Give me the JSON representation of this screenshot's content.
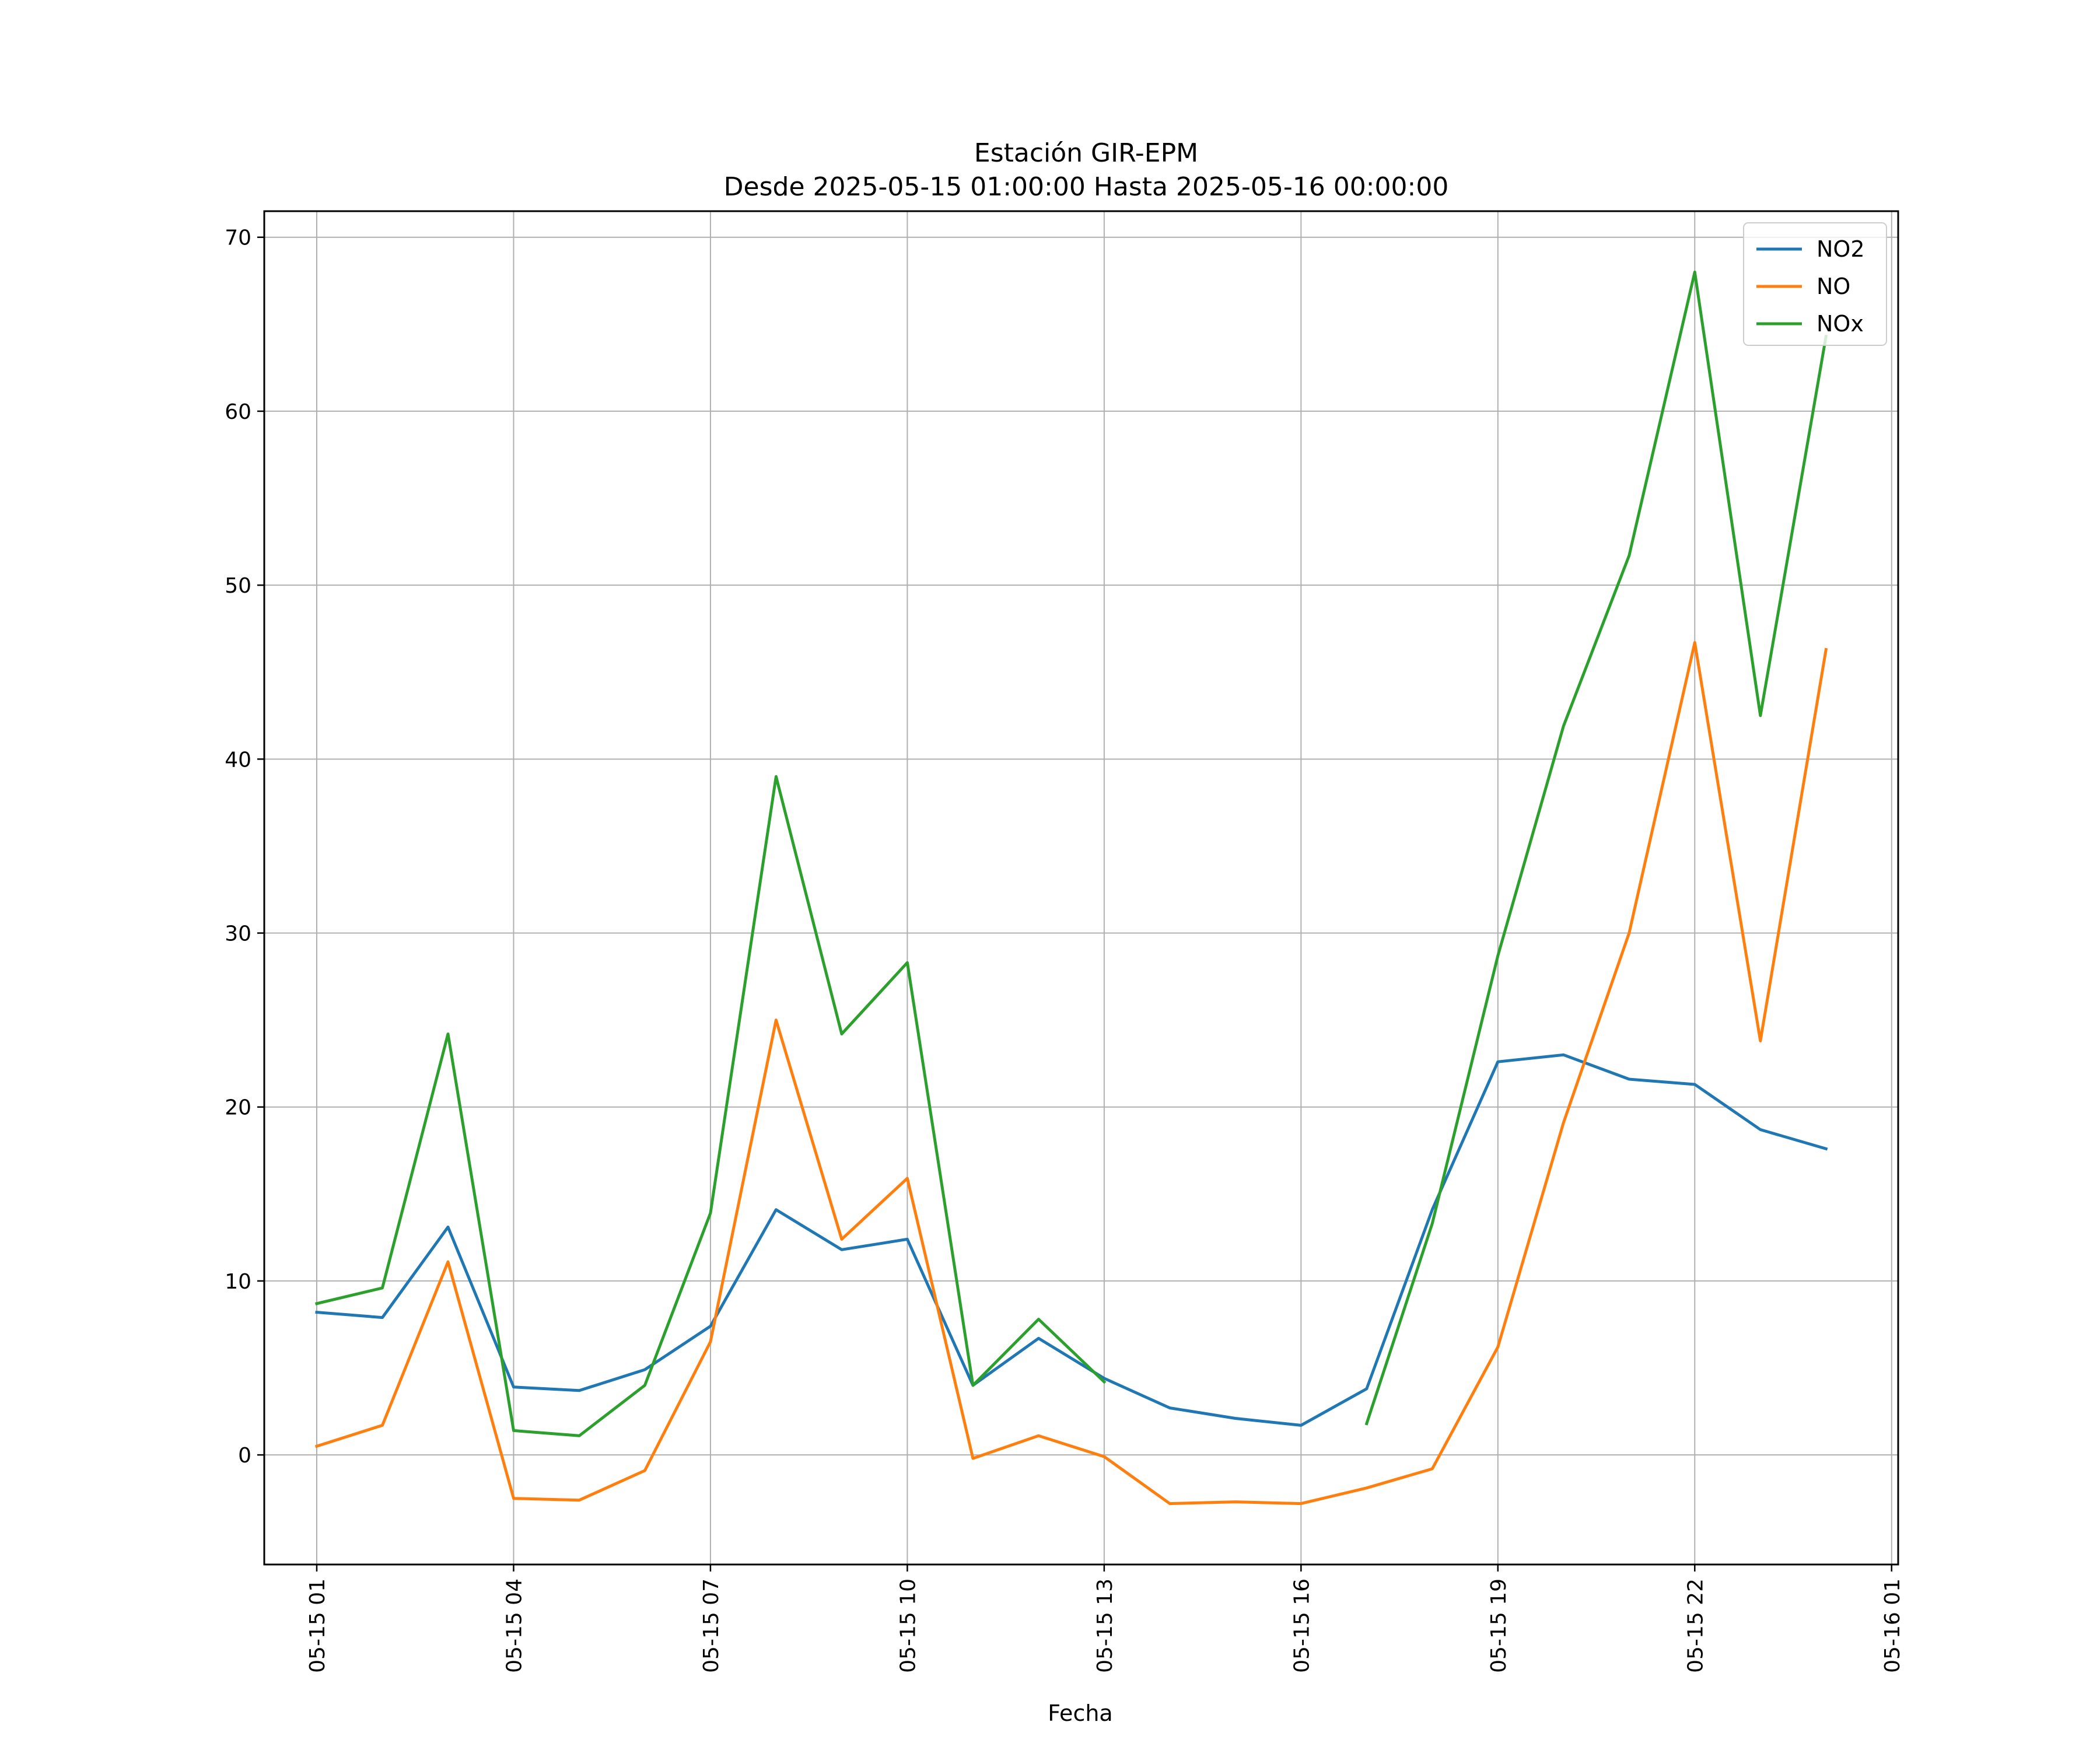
{
  "chart_data": {
    "type": "line",
    "title": "Estación GIR-EPM",
    "subtitle": "Desde 2025-05-15 01:00:00 Hasta 2025-05-16 00:00:00",
    "xlabel": "Fecha",
    "ylabel": "",
    "x": [
      "2025-05-15 01:00",
      "2025-05-15 02:00",
      "2025-05-15 03:00",
      "2025-05-15 04:00",
      "2025-05-15 05:00",
      "2025-05-15 06:00",
      "2025-05-15 07:00",
      "2025-05-15 08:00",
      "2025-05-15 09:00",
      "2025-05-15 10:00",
      "2025-05-15 11:00",
      "2025-05-15 12:00",
      "2025-05-15 13:00",
      "2025-05-15 14:00",
      "2025-05-15 15:00",
      "2025-05-15 16:00",
      "2025-05-15 17:00",
      "2025-05-15 18:00",
      "2025-05-15 19:00",
      "2025-05-15 20:00",
      "2025-05-15 21:00",
      "2025-05-15 22:00",
      "2025-05-15 23:00",
      "2025-05-16 00:00"
    ],
    "x_tick_labels": [
      "05-15 01",
      "05-15 04",
      "05-15 07",
      "05-15 10",
      "05-15 13",
      "05-15 16",
      "05-15 19",
      "05-15 22",
      "05-16 01"
    ],
    "x_ticks": [
      "2025-05-15 01:00",
      "2025-05-15 04:00",
      "2025-05-15 07:00",
      "2025-05-15 10:00",
      "2025-05-15 13:00",
      "2025-05-15 16:00",
      "2025-05-15 19:00",
      "2025-05-15 22:00",
      "2025-05-16 01:00"
    ],
    "xlim": [
      "2025-05-15 00:12",
      "2025-05-16 01:06"
    ],
    "y_ticks": [
      0,
      10,
      20,
      30,
      40,
      50,
      60,
      70
    ],
    "ylim": [
      -6.3,
      71.5
    ],
    "grid": true,
    "legend_position": "top-right",
    "series": [
      {
        "name": "NO2",
        "color": "#1f77b4",
        "values": [
          8.2,
          7.9,
          13.1,
          3.9,
          3.7,
          4.9,
          7.4,
          14.1,
          11.8,
          12.4,
          4.0,
          6.7,
          4.4,
          2.7,
          2.1,
          1.7,
          3.8,
          14.1,
          22.6,
          23.0,
          21.6,
          21.3,
          18.7,
          17.6
        ]
      },
      {
        "name": "NO",
        "color": "#ff7f0e",
        "values": [
          0.5,
          1.7,
          11.1,
          -2.5,
          -2.6,
          -0.9,
          6.5,
          25.0,
          12.4,
          15.9,
          -0.2,
          1.1,
          -0.1,
          -2.8,
          -2.7,
          -2.8,
          -1.9,
          -0.8,
          6.2,
          19.1,
          30.0,
          46.7,
          23.8,
          46.3
        ]
      },
      {
        "name": "NOx",
        "color": "#2ca02c",
        "values": [
          8.7,
          9.6,
          24.2,
          1.4,
          1.1,
          4.0,
          13.9,
          39.0,
          24.2,
          28.3,
          4.0,
          7.8,
          4.2,
          null,
          null,
          null,
          1.8,
          13.3,
          28.7,
          41.9,
          51.7,
          68.0,
          42.5,
          64.3
        ]
      }
    ]
  }
}
